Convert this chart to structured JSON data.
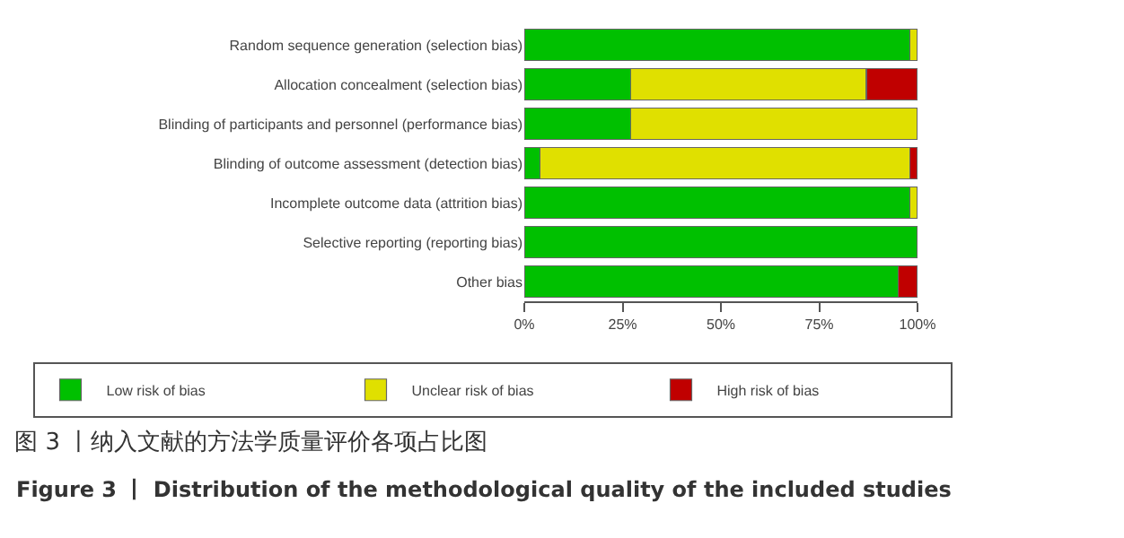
{
  "chart_data": {
    "type": "bar",
    "orientation": "horizontal",
    "stacked": true,
    "title": "图 3 丨纳入文献的方法学质量评价各项占比图",
    "subtitle": "Figure 3 丨 Distribution of the methodological quality of the included studies",
    "categories": [
      "Random sequence generation (selection bias)",
      "Allocation concealment (selection bias)",
      "Blinding of participants and personnel (performance bias)",
      "Blinding of outcome assessment (detection bias)",
      "Incomplete outcome data (attrition bias)",
      "Selective reporting (reporting bias)",
      "Other bias"
    ],
    "series": [
      {
        "name": "Low risk of bias",
        "color": "#00c000",
        "values": [
          98,
          27,
          27,
          4,
          98,
          100,
          95
        ]
      },
      {
        "name": "Unclear risk of bias",
        "color": "#e0e000",
        "values": [
          2,
          60,
          73,
          94,
          2,
          null,
          null
        ]
      },
      {
        "name": "High risk of bias",
        "color": "#c00000",
        "values": [
          null,
          13,
          null,
          2,
          null,
          null,
          5
        ]
      }
    ],
    "xlim": [
      0,
      100
    ],
    "xticks": [
      {
        "value": 0,
        "label": "0%"
      },
      {
        "value": 25,
        "label": "25%"
      },
      {
        "value": 50,
        "label": "50%"
      },
      {
        "value": 75,
        "label": "75%"
      },
      {
        "value": 100,
        "label": "100%"
      }
    ],
    "grid": false,
    "legend": "bottom"
  }
}
